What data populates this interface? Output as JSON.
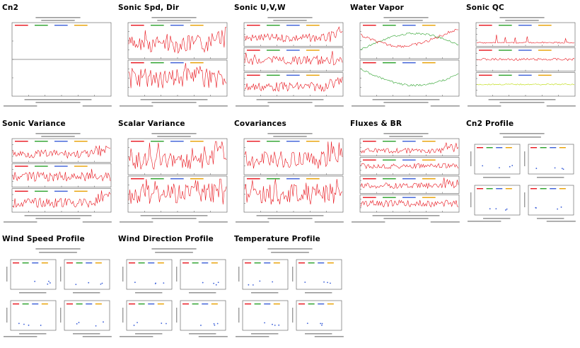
{
  "cells": [
    {
      "id": "cn2",
      "title": "Cn2",
      "style": "single-flat"
    },
    {
      "id": "sonic-spd-dir",
      "title": "Sonic Spd, Dir",
      "style": "two-panel"
    },
    {
      "id": "sonic-uvw",
      "title": "Sonic U,V,W",
      "style": "three-panel"
    },
    {
      "id": "water-vapor",
      "title": "Water Vapor",
      "style": "two-green"
    },
    {
      "id": "sonic-qc",
      "title": "Sonic QC",
      "style": "three-qc"
    },
    {
      "id": "sonic-variance",
      "title": "Sonic Variance",
      "style": "three-panel"
    },
    {
      "id": "scalar-variance",
      "title": "Scalar Variance",
      "style": "two-panel"
    },
    {
      "id": "covariances",
      "title": "Covariances",
      "style": "two-panel"
    },
    {
      "id": "fluxes-br",
      "title": "Fluxes & BR",
      "style": "four-panel"
    },
    {
      "id": "cn2-profile",
      "title": "Cn2 Profile",
      "style": "profile"
    },
    {
      "id": "wind-speed-profile",
      "title": "Wind Speed Profile",
      "style": "profile"
    },
    {
      "id": "wind-direction-profile",
      "title": "Wind Direction Profile",
      "style": "profile"
    },
    {
      "id": "temperature-profile",
      "title": "Temperature Profile",
      "style": "profile"
    }
  ],
  "colors": {
    "trace": "#e8141c",
    "trace2": "#2aa12a",
    "frame": "#555555",
    "accent": "#3b5fd8"
  }
}
